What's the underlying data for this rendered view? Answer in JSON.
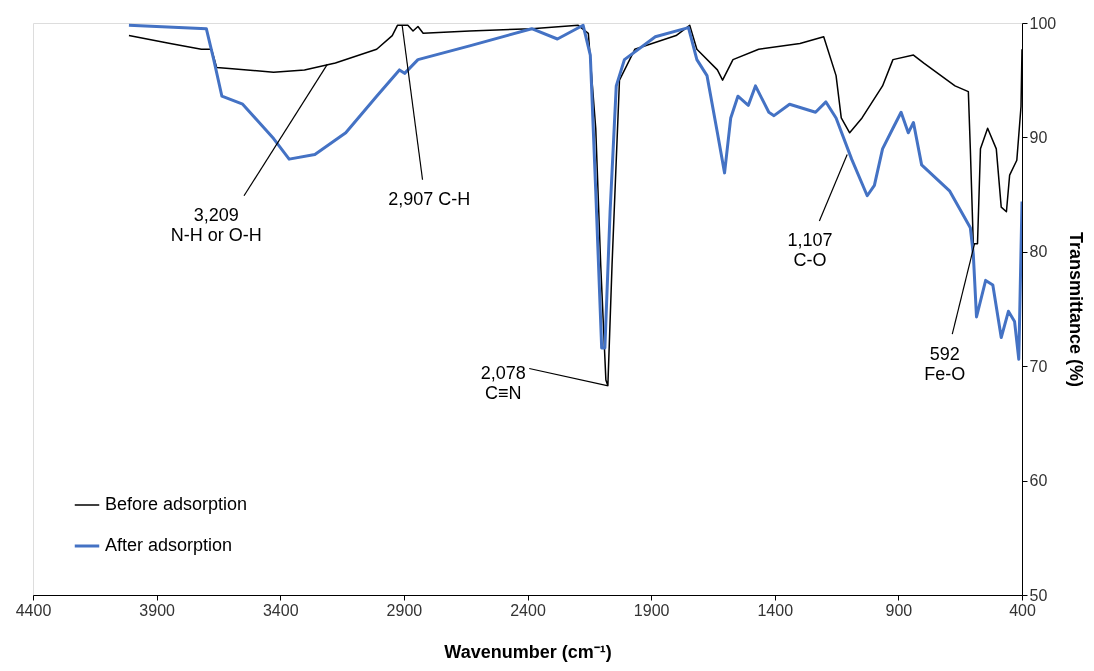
{
  "chart_data": {
    "type": "line",
    "xlabel": "Wavenumber (cm⁻¹)",
    "ylabel": "Transmittance (%)",
    "xlim": [
      4400,
      400
    ],
    "xticks": [
      4400,
      3900,
      3400,
      2900,
      2400,
      1900,
      1400,
      900,
      400
    ],
    "ylim": [
      50,
      100
    ],
    "yticks": [
      50,
      60,
      70,
      80,
      90,
      100
    ],
    "grid": false,
    "legend": "bottom left",
    "series": [
      {
        "name": "Before adsorption",
        "color": "#000000",
        "x": [
          4012,
          3845,
          3719,
          3678,
          3657,
          3594,
          3427,
          3302,
          3177,
          3010,
          2947,
          2926,
          2884,
          2863,
          2843,
          2822,
          2634,
          2383,
          2195,
          2154,
          2124,
          2104,
          2083,
          2075,
          2058,
          2028,
          1966,
          1799,
          1744,
          1715,
          1632,
          1611,
          1569,
          1465,
          1298,
          1202,
          1152,
          1131,
          1097,
          1047,
          964,
          922,
          839,
          797,
          671,
          617,
          609,
          597,
          580,
          568,
          539,
          504,
          484,
          463,
          450,
          421,
          404,
          400
        ],
        "values": [
          98.9,
          98.2,
          97.7,
          97.7,
          96.1,
          96.0,
          95.7,
          95.9,
          96.5,
          97.7,
          98.9,
          99.8,
          99.8,
          99.3,
          99.7,
          99.1,
          99.3,
          99.5,
          99.8,
          99.1,
          90.8,
          78.9,
          68.8,
          68.3,
          78.9,
          95.0,
          97.7,
          98.9,
          99.8,
          97.7,
          95.9,
          95.0,
          96.8,
          97.7,
          98.2,
          98.8,
          95.4,
          91.7,
          90.4,
          91.7,
          94.5,
          96.8,
          97.2,
          96.5,
          94.5,
          94.0,
          89.0,
          80.7,
          80.7,
          89.0,
          90.8,
          89.0,
          83.9,
          83.5,
          86.7,
          88.0,
          92.7,
          97.7
        ]
      },
      {
        "name": "After adsorption",
        "color": "#4472c4",
        "x": [
          4012,
          3699,
          3669,
          3636,
          3552,
          3427,
          3364,
          3260,
          3135,
          3010,
          2918,
          2897,
          2843,
          2634,
          2383,
          2279,
          2175,
          2146,
          2124,
          2100,
          2087,
          2066,
          2041,
          2008,
          1883,
          1749,
          1715,
          1674,
          1632,
          1603,
          1578,
          1549,
          1507,
          1478,
          1424,
          1403,
          1340,
          1235,
          1193,
          1152,
          1089,
          1026,
          997,
          964,
          922,
          889,
          860,
          839,
          806,
          692,
          609,
          597,
          584,
          547,
          518,
          484,
          455,
          430,
          413,
          400
        ],
        "values": [
          99.8,
          99.5,
          96.8,
          93.6,
          92.9,
          89.9,
          88.1,
          88.5,
          90.4,
          93.6,
          95.9,
          95.6,
          96.8,
          98.0,
          99.5,
          98.6,
          99.8,
          97.2,
          85.3,
          71.6,
          71.6,
          83.5,
          94.5,
          96.8,
          98.8,
          99.6,
          96.8,
          95.4,
          90.4,
          86.9,
          91.7,
          93.6,
          92.8,
          94.5,
          92.2,
          91.9,
          92.9,
          92.2,
          93.1,
          91.7,
          88.1,
          84.9,
          85.8,
          89.0,
          90.8,
          92.2,
          90.4,
          91.3,
          87.6,
          85.3,
          82.1,
          79.8,
          74.3,
          77.5,
          77.1,
          72.5,
          74.8,
          73.9,
          70.6,
          84.4
        ]
      }
    ],
    "annotations": [
      {
        "text": "3,209\nN-H or O-H",
        "x": 3209,
        "y": 96.4
      },
      {
        "text": "2,907 C-H",
        "x": 2907,
        "y": 99.8
      },
      {
        "text": "2,078\nC≡N",
        "x": 2078,
        "y": 68.3
      },
      {
        "text": "1,107\nC-O",
        "x": 1107,
        "y": 88.5
      },
      {
        "text": "592\nFe-O",
        "x": 592,
        "y": 80.7
      }
    ]
  }
}
